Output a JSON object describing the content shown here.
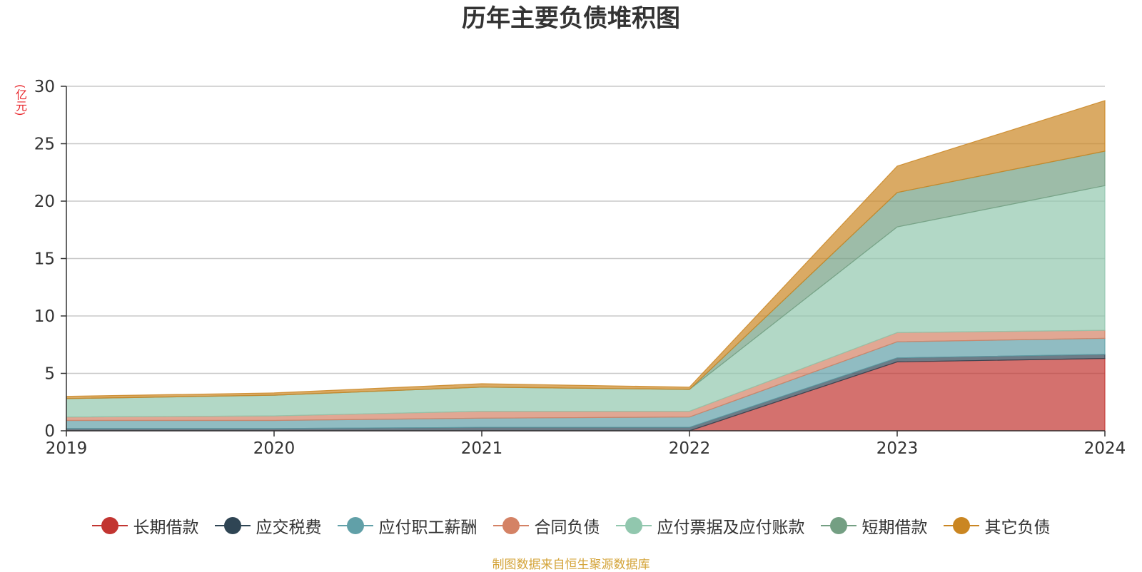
{
  "chart_data": {
    "type": "area",
    "title": "历年主要负债堆积图",
    "y_unit": "(亿元)",
    "x": [
      "2019",
      "2020",
      "2021",
      "2022",
      "2023",
      "2024"
    ],
    "ylim": [
      0,
      30
    ],
    "y_ticks": [
      "0",
      "5",
      "10",
      "15",
      "20",
      "25",
      "30"
    ],
    "grid": true,
    "stacked": true,
    "legend_position": "bottom",
    "series": [
      {
        "name": "长期借款",
        "color": "#c23531",
        "values": [
          0,
          0,
          0,
          0,
          6.0,
          6.3
        ]
      },
      {
        "name": "应交税费",
        "color": "#2f4554",
        "values": [
          0.2,
          0.2,
          0.3,
          0.3,
          0.35,
          0.35
        ]
      },
      {
        "name": "应付职工薪酬",
        "color": "#61a0a8",
        "values": [
          0.7,
          0.7,
          0.8,
          0.9,
          1.4,
          1.4
        ]
      },
      {
        "name": "合同负债",
        "color": "#d48265",
        "values": [
          0.3,
          0.4,
          0.6,
          0.5,
          0.8,
          0.7
        ]
      },
      {
        "name": "应付票据及应付账款",
        "color": "#91c7ae",
        "values": [
          1.6,
          1.8,
          2.1,
          1.9,
          9.2,
          12.6
        ]
      },
      {
        "name": "短期借款",
        "color": "#749f83",
        "values": [
          0,
          0,
          0,
          0,
          3.0,
          3.0
        ]
      },
      {
        "name": "其它负债",
        "color": "#ca8622",
        "values": [
          0.2,
          0.2,
          0.3,
          0.2,
          2.3,
          4.4
        ]
      }
    ]
  },
  "source_note": "制图数据来自恒生聚源数据库"
}
